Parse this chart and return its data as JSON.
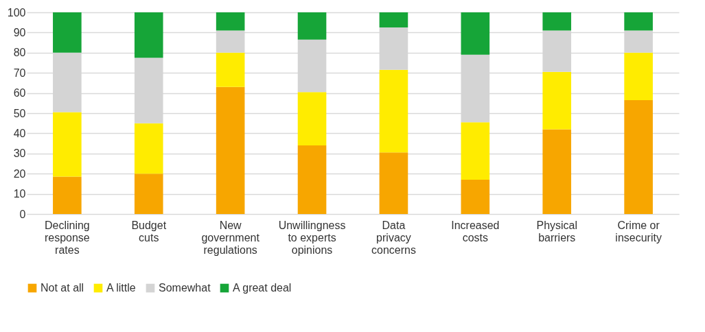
{
  "chart_data": {
    "type": "bar",
    "stacked": true,
    "categories": [
      "Declining response rates",
      "Budget cuts",
      "New government regulations",
      "Unwillingness to experts opinions",
      "Data privacy concerns",
      "Increased costs",
      "Physical barriers",
      "Crime or insecurity"
    ],
    "series": [
      {
        "name": "Not at all",
        "color": "#f7a600",
        "values": [
          18.5,
          20,
          63,
          34,
          30.5,
          17,
          42,
          56.5
        ]
      },
      {
        "name": "A little",
        "color": "#ffec00",
        "values": [
          32,
          25,
          17,
          26.5,
          41,
          28.5,
          28.5,
          23.5
        ]
      },
      {
        "name": "Somewhat",
        "color": "#d4d4d4",
        "values": [
          29.5,
          32.5,
          11,
          26,
          21,
          33.5,
          20.5,
          11
        ]
      },
      {
        "name": "A great deal",
        "color": "#16a538",
        "values": [
          20,
          22.5,
          9,
          13.5,
          7.5,
          21,
          9,
          9
        ]
      }
    ],
    "ylim": [
      0,
      100
    ],
    "yticks": [
      0,
      10,
      20,
      30,
      40,
      50,
      60,
      70,
      80,
      90,
      100
    ],
    "grid": "y",
    "legend": "bottom"
  }
}
